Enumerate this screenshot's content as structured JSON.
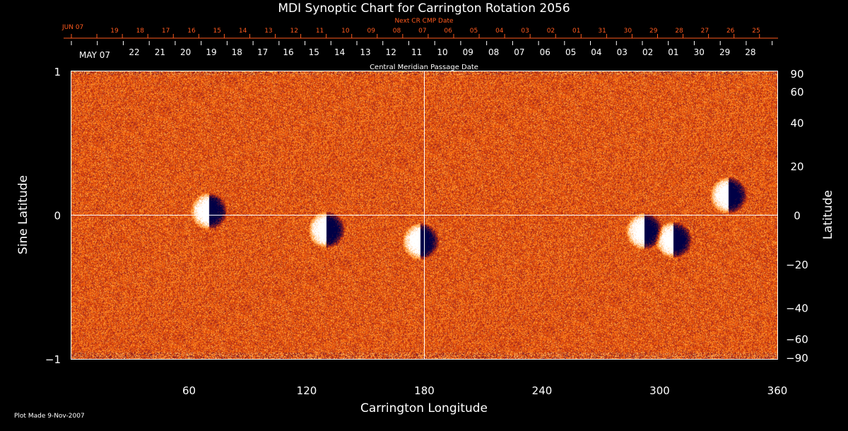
{
  "title": "MDI Synoptic Chart for Carrington Rotation 2056",
  "footer": "Plot Made  9-Nov-2007",
  "colors": {
    "background": "#000000",
    "axis": "#ffffff",
    "next_cr_text": "#ff5a1e",
    "field_neutral": "#d9480c",
    "field_positive": "#ffffff",
    "field_negative": "#0a0a3c"
  },
  "chart_data": {
    "type": "heatmap",
    "title": "MDI Synoptic Chart for Carrington Rotation 2056",
    "xlabel": "Carrington Longitude",
    "ylabel": "Sine Latitude",
    "ylabel_right": "Latitude",
    "xlim": [
      0,
      360
    ],
    "ylim": [
      -1,
      1
    ],
    "x_ticks": [
      60,
      120,
      180,
      240,
      300,
      360
    ],
    "y_ticks": [
      {
        "value": 1,
        "label": "1"
      },
      {
        "value": 0,
        "label": "0"
      },
      {
        "value": -1,
        "label": "−1"
      }
    ],
    "latitude_ticks": [
      {
        "deg": 90,
        "label": "90"
      },
      {
        "deg": 60,
        "label": "60"
      },
      {
        "deg": 40,
        "label": "40"
      },
      {
        "deg": 20,
        "label": "20"
      },
      {
        "deg": 0,
        "label": "0"
      },
      {
        "deg": -20,
        "label": "−20"
      },
      {
        "deg": -40,
        "label": "−40"
      },
      {
        "deg": -60,
        "label": "−60"
      },
      {
        "deg": -90,
        "label": "−90"
      }
    ],
    "top_axis": {
      "label": "Central Meridian Passage Date",
      "start_label": "MAY 07",
      "dates": [
        "22",
        "21",
        "20",
        "19",
        "18",
        "17",
        "16",
        "15",
        "14",
        "13",
        "12",
        "11",
        "10",
        "09",
        "08",
        "07",
        "06",
        "05",
        "04",
        "03",
        "02",
        "01",
        "30",
        "29",
        "28"
      ]
    },
    "next_cr_axis": {
      "label": "Next CR CMP Date",
      "start_label": "JUN 07",
      "dates": [
        "19",
        "18",
        "17",
        "16",
        "15",
        "14",
        "13",
        "12",
        "11",
        "10",
        "09",
        "08",
        "07",
        "06",
        "05",
        "04",
        "03",
        "02",
        "01",
        "31",
        "30",
        "29",
        "28",
        "27",
        "26",
        "25"
      ]
    },
    "reference_lines": {
      "longitude": 180,
      "sine_latitude": 0
    },
    "active_regions": [
      {
        "longitude": 70,
        "sine_latitude": 0.03
      },
      {
        "longitude": 130,
        "sine_latitude": -0.1
      },
      {
        "longitude": 178,
        "sine_latitude": -0.18
      },
      {
        "longitude": 292,
        "sine_latitude": -0.11
      },
      {
        "longitude": 307,
        "sine_latitude": -0.17
      },
      {
        "longitude": 335,
        "sine_latitude": 0.14
      }
    ]
  }
}
